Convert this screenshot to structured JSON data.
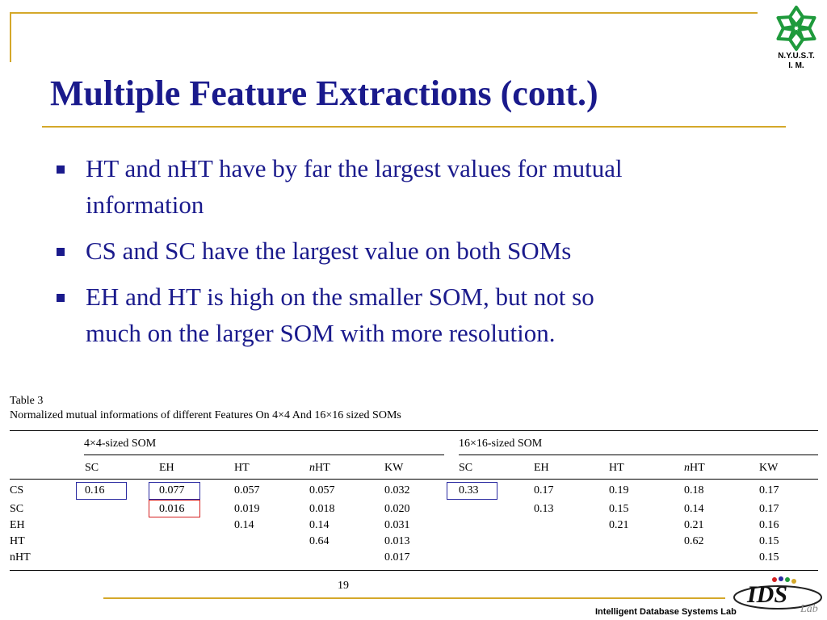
{
  "logo": {
    "text_line1": "N.Y.U.S.T.",
    "text_line2": "I. M."
  },
  "slide": {
    "title": "Multiple Feature Extractions (cont.)",
    "bullets": [
      {
        "line1": "HT and nHT have by far the largest values for mutual",
        "line2": "information"
      },
      {
        "line1": "CS and SC have the largest value on both SOMs",
        "line2": ""
      },
      {
        "line1": "EH and HT is high on the smaller SOM, but not so",
        "line2": "much on the larger SOM with more resolution."
      }
    ]
  },
  "table": {
    "label": "Table 3",
    "caption": "Normalized mutual informations of different Features On 4×4 And 16×16 sized SOMs",
    "group_left": "4×4-sized SOM",
    "group_right": "16×16-sized SOM",
    "columns": [
      "SC",
      "EH",
      "HT",
      "nHT",
      "KW",
      "SC",
      "EH",
      "HT",
      "nHT",
      "KW"
    ],
    "rows": [
      {
        "label": "CS",
        "cells": [
          "0.16",
          "0.077",
          "0.057",
          "0.057",
          "0.032",
          "0.33",
          "0.17",
          "0.19",
          "0.18",
          "0.17"
        ]
      },
      {
        "label": "SC",
        "cells": [
          "",
          "0.016",
          "0.019",
          "0.018",
          "0.020",
          "",
          "0.13",
          "0.15",
          "0.14",
          "0.17"
        ]
      },
      {
        "label": "EH",
        "cells": [
          "",
          "",
          "0.14",
          "0.14",
          "0.031",
          "",
          "",
          "0.21",
          "0.21",
          "0.16"
        ]
      },
      {
        "label": "HT",
        "cells": [
          "",
          "",
          "",
          "0.64",
          "0.013",
          "",
          "",
          "",
          "0.62",
          "0.15"
        ]
      },
      {
        "label": "nHT",
        "cells": [
          "",
          "",
          "",
          "",
          "0.017",
          "",
          "",
          "",
          "",
          "0.15"
        ]
      }
    ],
    "highlight_colors": {
      "blue": "#2a2aa0",
      "red": "#d42020"
    }
  },
  "footer": {
    "page_number": "19",
    "lab_name": "Intelligent Database Systems Lab",
    "ids_logo_text": "IDS",
    "ids_logo_sub": "Lab"
  },
  "colors": {
    "title": "#1a1a8c",
    "accent_rule": "#d4a82a",
    "logo_green": "#1f9a3c"
  }
}
